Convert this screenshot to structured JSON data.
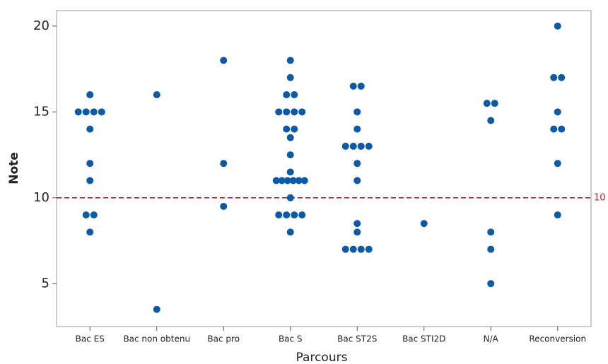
{
  "chart_data": {
    "type": "strip",
    "x_label": "Parcours",
    "y_label": "Note",
    "categories": [
      "Bac ES",
      "Bac non obtenu",
      "Bac pro",
      "Bac S",
      "Bac ST2S",
      "Bac STI2D",
      "N/A",
      "Reconversion"
    ],
    "values": [
      [
        16,
        15,
        15,
        15,
        15,
        14,
        12,
        11,
        9,
        9,
        8
      ],
      [
        16,
        3.5
      ],
      [
        18,
        12,
        9.5
      ],
      [
        18,
        17,
        16,
        16,
        15,
        15,
        15,
        15,
        14,
        14,
        13.5,
        12.5,
        11.5,
        11,
        11,
        11,
        11,
        11,
        11,
        10,
        9,
        9,
        9,
        9,
        8
      ],
      [
        16.5,
        16.5,
        15,
        14,
        13,
        13,
        13,
        13,
        12,
        11,
        8.5,
        8,
        7,
        7,
        7,
        7
      ],
      [
        8.5
      ],
      [
        15.5,
        15.5,
        14.5,
        8,
        7,
        5
      ],
      [
        20,
        17,
        17,
        15,
        14,
        14,
        12,
        9
      ]
    ],
    "color": "#0a5aa8",
    "ylim": [
      2.5,
      20.9
    ],
    "yticks": [
      5,
      10,
      15,
      20
    ],
    "ref_line": 10,
    "ref_color": "#c81e1e"
  }
}
